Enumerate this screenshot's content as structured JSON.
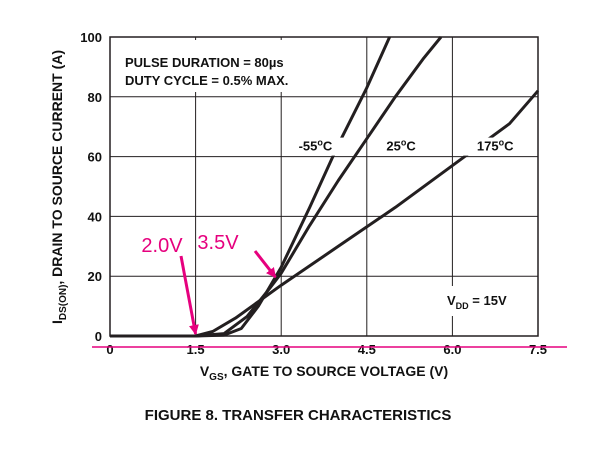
{
  "chart_data": {
    "type": "line",
    "caption": "FIGURE 8.  TRANSFER CHARACTERISTICS",
    "xlabel": {
      "main": "V",
      "sub": "GS",
      "rest": ", GATE TO SOURCE VOLTAGE (V)"
    },
    "ylabel": {
      "main": "I",
      "sub": "DS(ON)",
      "rest": ", DRAIN TO SOURCE CURRENT (A)"
    },
    "xlim": [
      0,
      7.5
    ],
    "ylim": [
      0,
      100
    ],
    "x_ticks": [
      "0",
      "1.5",
      "3.0",
      "4.5",
      "6.0",
      "7.5"
    ],
    "y_ticks": [
      "0",
      "20",
      "40",
      "60",
      "80",
      "100"
    ],
    "grid": true,
    "notes": [
      "PULSE DURATION = 80µs",
      "DUTY CYCLE = 0.5% MAX."
    ],
    "vdd": {
      "main": "V",
      "sub": "DD",
      "rest": " = 15V"
    },
    "series": [
      {
        "name": "-55°C",
        "label_main": "-55",
        "label_unit": "C",
        "points": [
          [
            0,
            0
          ],
          [
            1.5,
            0
          ],
          [
            2.0,
            0.3
          ],
          [
            2.3,
            2.5
          ],
          [
            2.6,
            10
          ],
          [
            3.0,
            23
          ],
          [
            3.5,
            43
          ],
          [
            4.0,
            64
          ],
          [
            4.5,
            83
          ],
          [
            4.9,
            100
          ]
        ]
      },
      {
        "name": "25°C",
        "label_main": "25",
        "label_unit": "C",
        "points": [
          [
            0,
            0
          ],
          [
            1.5,
            0
          ],
          [
            2.0,
            0.8
          ],
          [
            2.4,
            6.5
          ],
          [
            2.8,
            16
          ],
          [
            3.0,
            21
          ],
          [
            3.5,
            37
          ],
          [
            4.0,
            52
          ],
          [
            4.5,
            66
          ],
          [
            5.0,
            80
          ],
          [
            5.5,
            93
          ],
          [
            5.8,
            100
          ]
        ]
      },
      {
        "name": "175°C",
        "label_main": "175",
        "label_unit": "C",
        "points": [
          [
            0,
            0
          ],
          [
            1.5,
            0
          ],
          [
            1.8,
            1.5
          ],
          [
            2.2,
            6
          ],
          [
            2.6,
            11.5
          ],
          [
            3.0,
            17
          ],
          [
            4.0,
            30
          ],
          [
            5.0,
            43
          ],
          [
            6.0,
            57
          ],
          [
            7.0,
            71
          ],
          [
            7.5,
            82
          ]
        ]
      }
    ],
    "annotations": [
      {
        "text": "2.0V",
        "x": 1.5,
        "y": 0
      },
      {
        "text": "3.5V",
        "x": 2.9,
        "y": 19
      }
    ],
    "reference_line_color": "#e6007e",
    "curve_color": "#231f20"
  }
}
